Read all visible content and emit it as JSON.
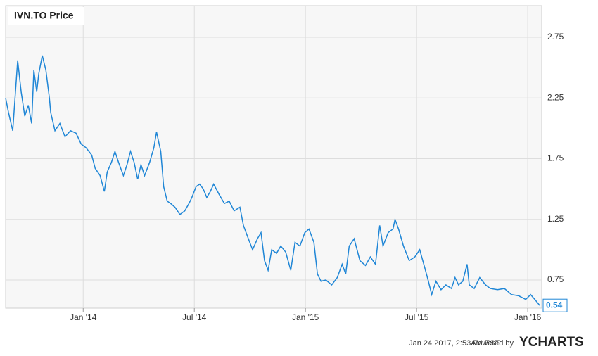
{
  "chart_data": {
    "type": "line",
    "title": "IVN.TO Price",
    "color": "#1f86d6",
    "grid": true,
    "x": [
      2013.651,
      2013.664,
      2013.683,
      2013.705,
      2013.721,
      2013.737,
      2013.753,
      2013.768,
      2013.778,
      2013.791,
      2013.8,
      2013.816,
      2013.832,
      2013.848,
      2013.854,
      2013.873,
      2013.895,
      2013.918,
      2013.943,
      2013.968,
      2013.991,
      2014.013,
      2014.038,
      2014.054,
      2014.076,
      2014.095,
      2014.108,
      2014.127,
      2014.143,
      2014.159,
      2014.181,
      2014.197,
      2014.213,
      2014.229,
      2014.245,
      2014.26,
      2014.276,
      2014.299,
      2014.318,
      2014.33,
      2014.349,
      2014.362,
      2014.378,
      2014.394,
      2014.413,
      2014.435,
      2014.457,
      2014.476,
      2014.489,
      2014.508,
      2014.524,
      2014.54,
      2014.556,
      2014.572,
      2014.587,
      2014.61,
      2014.635,
      2014.657,
      2014.679,
      2014.705,
      2014.721,
      2014.743,
      2014.762,
      2014.784,
      2014.8,
      2014.816,
      2014.832,
      2014.848,
      2014.87,
      2014.889,
      2014.911,
      2014.934,
      2014.953,
      2014.975,
      2014.997,
      2015.016,
      2015.038,
      2015.054,
      2015.07,
      2015.092,
      2015.118,
      2015.143,
      2015.165,
      2015.181,
      2015.197,
      2015.219,
      2015.245,
      2015.27,
      2015.292,
      2015.315,
      2015.334,
      2015.349,
      2015.372,
      2015.394,
      2015.403,
      2015.419,
      2015.441,
      2015.467,
      2015.492,
      2015.514,
      2015.537,
      2015.553,
      2015.568,
      2015.587,
      2015.61,
      2015.632,
      2015.657,
      2015.673,
      2015.689,
      2015.708,
      2015.727,
      2015.737,
      2015.759,
      2015.784,
      2015.81,
      2015.832,
      2015.864,
      2015.895,
      2015.927,
      2015.959,
      2015.991,
      2016.013,
      2016.032,
      2016.054
    ],
    "values": [
      2.25,
      2.13,
      1.98,
      2.56,
      2.3,
      2.1,
      2.19,
      2.04,
      2.48,
      2.3,
      2.45,
      2.6,
      2.48,
      2.25,
      2.13,
      1.98,
      2.04,
      1.93,
      1.98,
      1.96,
      1.87,
      1.84,
      1.78,
      1.67,
      1.61,
      1.48,
      1.64,
      1.72,
      1.81,
      1.72,
      1.61,
      1.7,
      1.81,
      1.72,
      1.58,
      1.7,
      1.61,
      1.72,
      1.84,
      1.97,
      1.81,
      1.52,
      1.4,
      1.38,
      1.35,
      1.29,
      1.32,
      1.38,
      1.43,
      1.52,
      1.54,
      1.5,
      1.43,
      1.48,
      1.54,
      1.46,
      1.38,
      1.4,
      1.32,
      1.35,
      1.2,
      1.09,
      1.0,
      1.09,
      1.14,
      0.91,
      0.83,
      1.0,
      0.97,
      1.03,
      0.98,
      0.83,
      1.06,
      1.03,
      1.14,
      1.17,
      1.06,
      0.8,
      0.74,
      0.75,
      0.71,
      0.77,
      0.88,
      0.8,
      1.03,
      1.09,
      0.91,
      0.87,
      0.94,
      0.88,
      1.2,
      1.03,
      1.14,
      1.17,
      1.25,
      1.17,
      1.03,
      0.91,
      0.94,
      1.0,
      0.85,
      0.74,
      0.63,
      0.74,
      0.67,
      0.71,
      0.68,
      0.77,
      0.71,
      0.74,
      0.88,
      0.71,
      0.68,
      0.77,
      0.71,
      0.68,
      0.67,
      0.68,
      0.63,
      0.62,
      0.59,
      0.63,
      0.59,
      0.54
    ],
    "xlim": [
      2013.651,
      2016.063
    ],
    "xticks": [
      {
        "value": 2014,
        "label": "Jan '14"
      },
      {
        "value": 2014.5,
        "label": "Jul '14"
      },
      {
        "value": 2015,
        "label": "Jan '15"
      },
      {
        "value": 2015.5,
        "label": "Jul '15"
      },
      {
        "value": 2016,
        "label": "Jan '16"
      }
    ],
    "ylim": [
      0.518,
      3.011
    ],
    "yticks": [
      0.75,
      1.25,
      1.75,
      2.25,
      2.75
    ]
  },
  "footer": {
    "timestamp": "Jan 24 2017, 2:53AM EST.",
    "powered_by": "Powered by",
    "brand": "YCHARTS"
  }
}
